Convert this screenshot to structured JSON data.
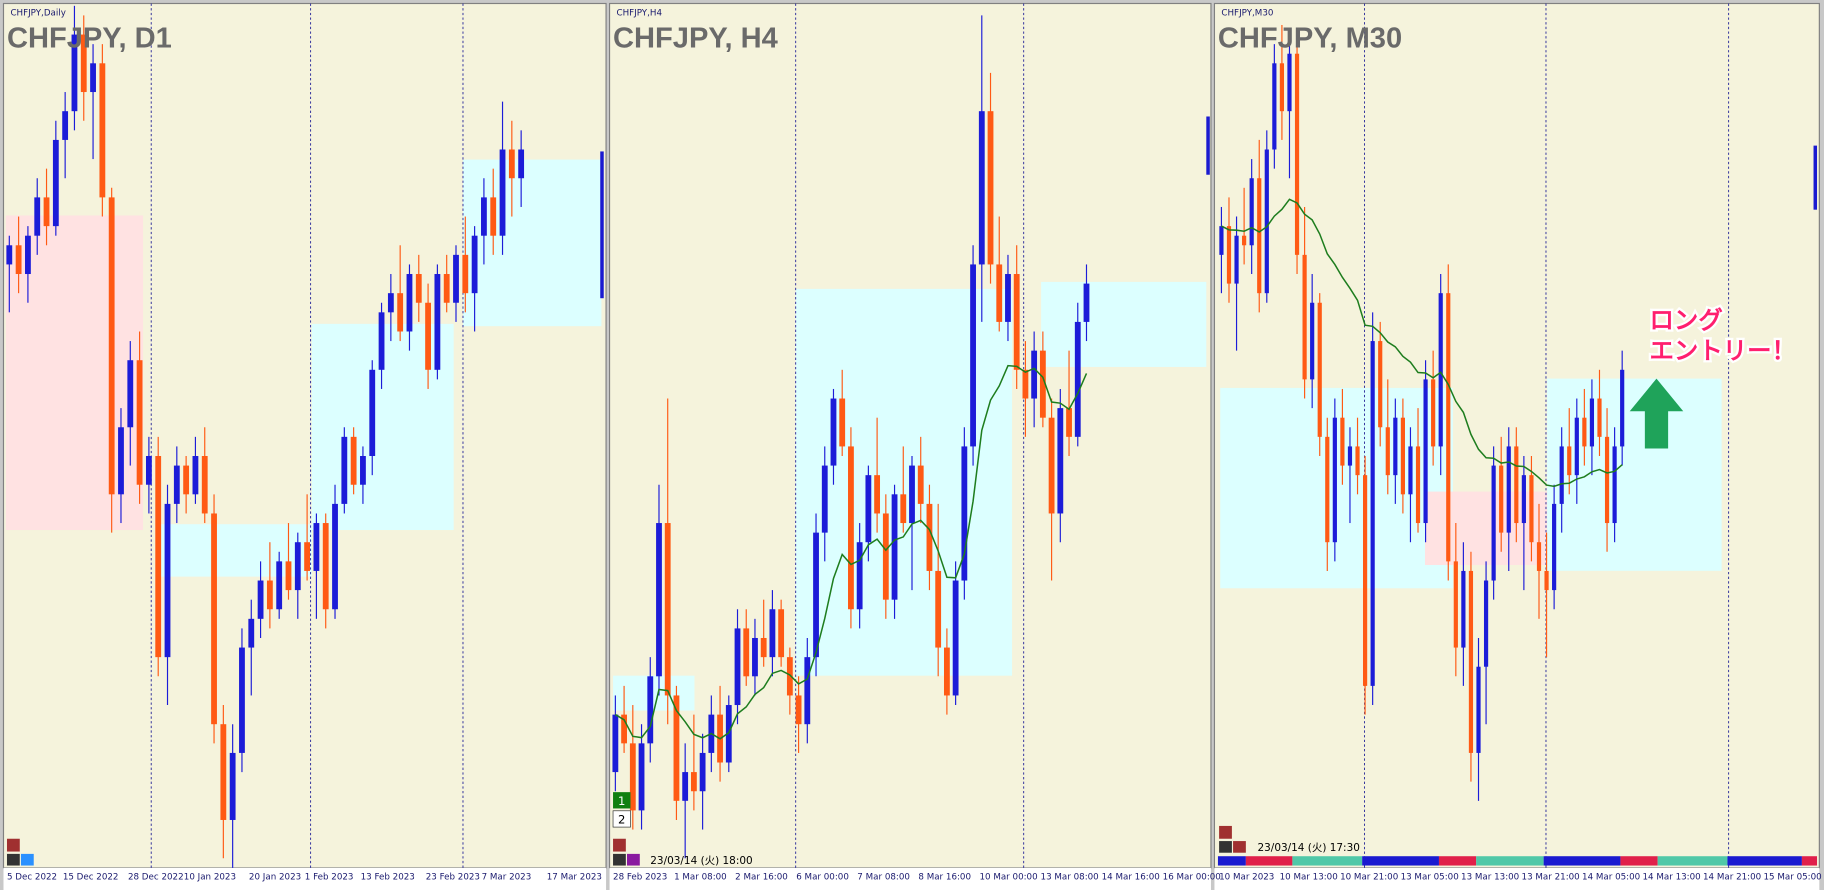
{
  "chart_data": [
    {
      "type": "candlestick",
      "symbol_label": "CHFJPY,Daily",
      "title": "CHFJPY, D1",
      "bull_color": "#1c1cd8",
      "bear_color": "#ff5a14",
      "ylim": [
        140,
        149
      ],
      "categories": [
        "5 Dec 2022",
        null,
        null,
        null,
        null,
        null,
        "15 Dec 2022",
        null,
        null,
        null,
        null,
        null,
        null,
        "28 Dec 2022",
        null,
        null,
        null,
        null,
        null,
        "10 Jan 2023",
        null,
        null,
        null,
        null,
        null,
        null,
        "20 Jan 2023",
        null,
        null,
        null,
        null,
        null,
        "1 Feb 2023",
        null,
        null,
        null,
        null,
        null,
        "13 Feb 2023",
        null,
        null,
        null,
        null,
        null,
        null,
        "23 Feb 2023",
        null,
        null,
        null,
        null,
        null,
        "7 Mar 2023",
        null,
        null,
        null,
        null,
        null,
        null,
        "17 Mar 2023",
        null
      ],
      "candles": [
        [
          146.3,
          146.6,
          145.8,
          146.5
        ],
        [
          146.5,
          146.8,
          146.0,
          146.2
        ],
        [
          146.2,
          146.7,
          145.9,
          146.6
        ],
        [
          146.6,
          147.2,
          146.4,
          147.0
        ],
        [
          147.0,
          147.3,
          146.5,
          146.7
        ],
        [
          146.7,
          147.8,
          146.6,
          147.6
        ],
        [
          147.6,
          148.1,
          147.2,
          147.9
        ],
        [
          147.9,
          149.0,
          147.7,
          148.7
        ],
        [
          148.7,
          148.9,
          147.8,
          148.1
        ],
        [
          148.1,
          148.6,
          147.4,
          148.4
        ],
        [
          148.4,
          148.6,
          146.8,
          147.0
        ],
        [
          147.0,
          147.1,
          143.5,
          143.9
        ],
        [
          143.9,
          144.8,
          143.6,
          144.6
        ],
        [
          144.6,
          145.5,
          144.2,
          145.3
        ],
        [
          145.3,
          145.6,
          143.8,
          144.0
        ],
        [
          144.0,
          144.5,
          143.7,
          144.3
        ],
        [
          144.3,
          144.5,
          142.0,
          142.2
        ],
        [
          142.2,
          144.0,
          141.7,
          143.8
        ],
        [
          143.8,
          144.4,
          143.6,
          144.2
        ],
        [
          144.2,
          144.3,
          143.7,
          143.9
        ],
        [
          143.9,
          144.5,
          143.8,
          144.3
        ],
        [
          144.3,
          144.6,
          143.6,
          143.7
        ],
        [
          143.7,
          143.9,
          141.3,
          141.5
        ],
        [
          141.5,
          141.7,
          140.1,
          140.5
        ],
        [
          140.5,
          141.5,
          140.0,
          141.2
        ],
        [
          141.2,
          142.5,
          141.0,
          142.3
        ],
        [
          142.3,
          142.8,
          141.8,
          142.6
        ],
        [
          142.6,
          143.2,
          142.4,
          143.0
        ],
        [
          143.0,
          143.4,
          142.5,
          142.7
        ],
        [
          142.7,
          143.3,
          142.6,
          143.2
        ],
        [
          143.2,
          143.6,
          142.8,
          142.9
        ],
        [
          142.9,
          143.5,
          142.6,
          143.4
        ],
        [
          143.4,
          143.9,
          143.0,
          143.1
        ],
        [
          143.1,
          143.7,
          142.6,
          143.6
        ],
        [
          143.6,
          143.7,
          142.5,
          142.7
        ],
        [
          142.7,
          144.0,
          142.6,
          143.8
        ],
        [
          143.8,
          144.6,
          143.7,
          144.5
        ],
        [
          144.5,
          144.6,
          143.9,
          144.0
        ],
        [
          144.0,
          144.4,
          143.8,
          144.3
        ],
        [
          144.3,
          145.3,
          144.1,
          145.2
        ],
        [
          145.2,
          145.9,
          145.0,
          145.8
        ],
        [
          145.8,
          146.2,
          145.5,
          146.0
        ],
        [
          146.0,
          146.5,
          145.5,
          145.6
        ],
        [
          145.6,
          146.3,
          145.4,
          146.2
        ],
        [
          146.2,
          146.4,
          145.7,
          145.9
        ],
        [
          145.9,
          146.1,
          145.0,
          145.2
        ],
        [
          145.2,
          146.3,
          145.1,
          146.2
        ],
        [
          146.2,
          146.4,
          145.8,
          145.9
        ],
        [
          145.9,
          146.5,
          145.7,
          146.4
        ],
        [
          146.4,
          146.8,
          145.8,
          146.0
        ],
        [
          146.0,
          146.7,
          145.6,
          146.6
        ],
        [
          146.6,
          147.2,
          146.3,
          147.0
        ],
        [
          147.0,
          147.3,
          146.4,
          146.6
        ],
        [
          146.6,
          148.0,
          146.4,
          147.5
        ],
        [
          147.5,
          147.8,
          146.8,
          147.2
        ],
        [
          147.2,
          147.7,
          146.9,
          147.5
        ],
        null,
        null,
        null,
        null
      ]
    },
    {
      "type": "candlestick",
      "symbol_label": "CHFJPY,H4",
      "title": "CHFJPY, H4",
      "bull_color": "#1c1cd8",
      "bear_color": "#ff5a14",
      "ma_color": "#1e7d1e",
      "ylim": [
        140,
        149
      ],
      "timestamp": "23/03/14 (火) 18:00",
      "markers": [
        1,
        2
      ],
      "categories": [
        "28 Feb 2023",
        null,
        null,
        null,
        null,
        null,
        null,
        "1 Mar 08:00",
        null,
        null,
        null,
        null,
        null,
        null,
        "2 Mar 16:00",
        null,
        null,
        null,
        null,
        null,
        null,
        "6 Mar 00:00",
        null,
        null,
        null,
        null,
        null,
        null,
        "7 Mar 08:00",
        null,
        null,
        null,
        null,
        null,
        null,
        "8 Mar 16:00",
        null,
        null,
        null,
        null,
        null,
        null,
        "10 Mar 00:00",
        null,
        null,
        null,
        null,
        null,
        null,
        "13 Mar 08:00",
        null,
        null,
        null,
        null,
        null,
        null,
        "14 Mar 16:00",
        null,
        null,
        null,
        null,
        null,
        null,
        "16 Mar 00:00"
      ],
      "candles": [
        [
          141.0,
          141.8,
          140.8,
          141.6
        ],
        [
          141.6,
          141.9,
          141.2,
          141.3
        ],
        [
          141.3,
          141.7,
          140.4,
          140.6
        ],
        [
          140.6,
          141.5,
          140.4,
          141.3
        ],
        [
          141.3,
          142.2,
          141.1,
          142.0
        ],
        [
          142.0,
          144.0,
          141.8,
          143.6
        ],
        [
          143.6,
          144.9,
          141.5,
          141.8
        ],
        [
          141.8,
          141.9,
          140.5,
          140.7
        ],
        [
          140.7,
          141.3,
          140.1,
          141.0
        ],
        [
          141.0,
          141.6,
          140.6,
          140.8
        ],
        [
          140.8,
          141.4,
          140.4,
          141.2
        ],
        [
          141.2,
          141.8,
          141.0,
          141.6
        ],
        [
          141.6,
          141.9,
          140.9,
          141.1
        ],
        [
          141.1,
          141.8,
          141.0,
          141.7
        ],
        [
          141.7,
          142.7,
          141.5,
          142.5
        ],
        [
          142.5,
          142.7,
          141.9,
          142.0
        ],
        [
          142.0,
          142.6,
          141.8,
          142.4
        ],
        [
          142.4,
          142.8,
          142.1,
          142.2
        ],
        [
          142.2,
          142.9,
          142.0,
          142.7
        ],
        [
          142.7,
          142.8,
          142.1,
          142.2
        ],
        [
          142.2,
          142.3,
          141.6,
          141.8
        ],
        [
          141.8,
          142.0,
          141.2,
          141.5
        ],
        [
          141.5,
          142.4,
          141.3,
          142.2
        ],
        [
          142.2,
          143.7,
          142.0,
          143.5
        ],
        [
          143.5,
          144.4,
          143.2,
          144.2
        ],
        [
          144.2,
          145.0,
          144.0,
          144.9
        ],
        [
          144.9,
          145.2,
          144.3,
          144.4
        ],
        [
          144.4,
          144.6,
          142.5,
          142.7
        ],
        [
          142.7,
          143.6,
          142.5,
          143.4
        ],
        [
          143.4,
          144.2,
          143.2,
          144.1
        ],
        [
          144.1,
          144.7,
          143.5,
          143.7
        ],
        [
          143.7,
          143.9,
          142.6,
          142.8
        ],
        [
          142.8,
          144.0,
          142.6,
          143.9
        ],
        [
          143.9,
          144.4,
          143.5,
          143.6
        ],
        [
          143.6,
          144.3,
          142.9,
          144.2
        ],
        [
          144.2,
          144.5,
          143.6,
          143.8
        ],
        [
          143.8,
          144.0,
          142.9,
          143.1
        ],
        [
          143.1,
          143.8,
          142.0,
          142.3
        ],
        [
          142.3,
          142.5,
          141.6,
          141.8
        ],
        [
          141.8,
          143.2,
          141.7,
          143.0
        ],
        [
          143.0,
          144.6,
          142.8,
          144.4
        ],
        [
          144.4,
          146.5,
          144.2,
          146.3
        ],
        [
          146.3,
          148.9,
          145.7,
          147.9
        ],
        [
          147.9,
          148.3,
          146.1,
          146.3
        ],
        [
          146.3,
          146.8,
          145.6,
          145.7
        ],
        [
          145.7,
          146.4,
          145.5,
          146.2
        ],
        [
          146.2,
          146.5,
          145.0,
          145.2
        ],
        [
          145.2,
          145.5,
          144.5,
          144.9
        ],
        [
          144.9,
          145.6,
          144.6,
          145.4
        ],
        [
          145.4,
          145.6,
          144.6,
          144.7
        ],
        [
          144.7,
          144.9,
          143.0,
          143.7
        ],
        [
          143.7,
          145.0,
          143.4,
          144.8
        ],
        [
          144.8,
          145.4,
          144.3,
          144.5
        ],
        [
          144.5,
          145.9,
          144.4,
          145.7
        ],
        [
          145.7,
          146.3,
          145.5,
          146.1
        ],
        null,
        null,
        null,
        null,
        null,
        null,
        null,
        null,
        null
      ]
    },
    {
      "type": "candlestick",
      "symbol_label": "CHFJPY,M30",
      "title": "CHFJPY, M30",
      "bull_color": "#1c1cd8",
      "bear_color": "#ff5a14",
      "ma_color": "#1e7d1e",
      "ylim": [
        140,
        149
      ],
      "timestamp": "23/03/14 (火) 17:30",
      "annotation": [
        "ロング",
        "エントリー！"
      ],
      "categories": [
        "10 Mar 2023",
        null,
        null,
        null,
        null,
        null,
        null,
        null,
        "10 Mar 13:00",
        null,
        null,
        null,
        null,
        null,
        null,
        null,
        "10 Mar 21:00",
        null,
        null,
        null,
        null,
        null,
        null,
        null,
        "13 Mar 05:00",
        null,
        null,
        null,
        null,
        null,
        null,
        null,
        "13 Mar 13:00",
        null,
        null,
        null,
        null,
        null,
        null,
        null,
        "13 Mar 21:00",
        null,
        null,
        null,
        null,
        null,
        null,
        null,
        "14 Mar 05:00",
        null,
        null,
        null,
        null,
        null,
        null,
        null,
        "14 Mar 13:00",
        null,
        null,
        null,
        null,
        null,
        null,
        null,
        "14 Mar 21:00",
        null,
        null,
        null,
        null,
        null,
        null,
        null,
        "15 Mar 05:00"
      ],
      "candles": [
        [
          146.4,
          146.9,
          146.0,
          146.7
        ],
        [
          146.7,
          147.0,
          145.9,
          146.1
        ],
        [
          146.1,
          146.8,
          145.4,
          146.6
        ],
        [
          146.6,
          147.1,
          146.3,
          146.5
        ],
        [
          146.5,
          147.4,
          146.2,
          147.2
        ],
        [
          147.2,
          147.6,
          145.8,
          146.0
        ],
        [
          146.0,
          147.7,
          145.9,
          147.5
        ],
        [
          147.5,
          148.6,
          147.3,
          148.4
        ],
        [
          148.4,
          148.8,
          147.6,
          147.9
        ],
        [
          147.9,
          148.7,
          147.2,
          148.5
        ],
        [
          148.5,
          148.6,
          146.2,
          146.4
        ],
        [
          146.4,
          146.9,
          144.9,
          145.1
        ],
        [
          145.1,
          146.2,
          144.8,
          145.9
        ],
        [
          145.9,
          146.0,
          144.3,
          144.5
        ],
        [
          144.5,
          144.7,
          143.1,
          143.4
        ],
        [
          143.4,
          144.9,
          143.2,
          144.7
        ],
        [
          144.7,
          145.0,
          144.0,
          144.2
        ],
        [
          144.2,
          144.6,
          143.6,
          144.4
        ],
        [
          144.4,
          144.7,
          143.9,
          144.1
        ],
        [
          144.1,
          144.3,
          141.6,
          141.9
        ],
        [
          141.9,
          145.8,
          141.7,
          145.5
        ],
        [
          145.5,
          145.7,
          144.4,
          144.6
        ],
        [
          144.6,
          145.1,
          143.9,
          144.1
        ],
        [
          144.1,
          144.9,
          143.8,
          144.7
        ],
        [
          144.7,
          144.9,
          143.7,
          143.9
        ],
        [
          143.9,
          144.6,
          143.4,
          144.4
        ],
        [
          144.4,
          144.8,
          143.5,
          143.6
        ],
        [
          143.6,
          145.3,
          143.4,
          145.1
        ],
        [
          145.1,
          145.4,
          144.2,
          144.4
        ],
        [
          144.4,
          146.2,
          144.1,
          146.0
        ],
        [
          146.0,
          146.3,
          143.0,
          143.2
        ],
        [
          143.2,
          143.6,
          142.0,
          142.3
        ],
        [
          142.3,
          143.4,
          141.9,
          143.1
        ],
        [
          143.1,
          143.3,
          140.9,
          141.2
        ],
        [
          141.2,
          142.4,
          140.7,
          142.1
        ],
        [
          142.1,
          143.2,
          141.5,
          143.0
        ],
        [
          143.0,
          144.4,
          142.8,
          144.2
        ],
        [
          144.2,
          144.5,
          143.3,
          143.5
        ],
        [
          143.5,
          144.6,
          143.1,
          144.4
        ],
        [
          144.4,
          144.6,
          143.4,
          143.6
        ],
        [
          143.6,
          144.3,
          142.9,
          144.1
        ],
        [
          144.1,
          144.3,
          143.2,
          143.4
        ],
        [
          143.4,
          143.8,
          142.6,
          143.1
        ],
        [
          143.1,
          143.5,
          142.2,
          142.9
        ],
        [
          142.9,
          144.0,
          142.7,
          143.8
        ],
        [
          143.8,
          144.6,
          143.5,
          144.4
        ],
        [
          144.4,
          144.8,
          143.9,
          144.1
        ],
        [
          144.1,
          144.9,
          143.8,
          144.7
        ],
        [
          144.7,
          145.0,
          144.2,
          144.4
        ],
        [
          144.4,
          145.1,
          144.1,
          144.9
        ],
        [
          144.9,
          145.2,
          144.3,
          144.5
        ],
        [
          144.5,
          144.8,
          143.3,
          143.6
        ],
        [
          143.6,
          144.6,
          143.4,
          144.4
        ],
        [
          144.4,
          145.4,
          144.2,
          145.2
        ],
        null,
        null,
        null,
        null,
        null,
        null,
        null,
        null,
        null,
        null,
        null,
        null,
        null,
        null,
        null,
        null,
        null,
        null,
        null
      ]
    }
  ]
}
